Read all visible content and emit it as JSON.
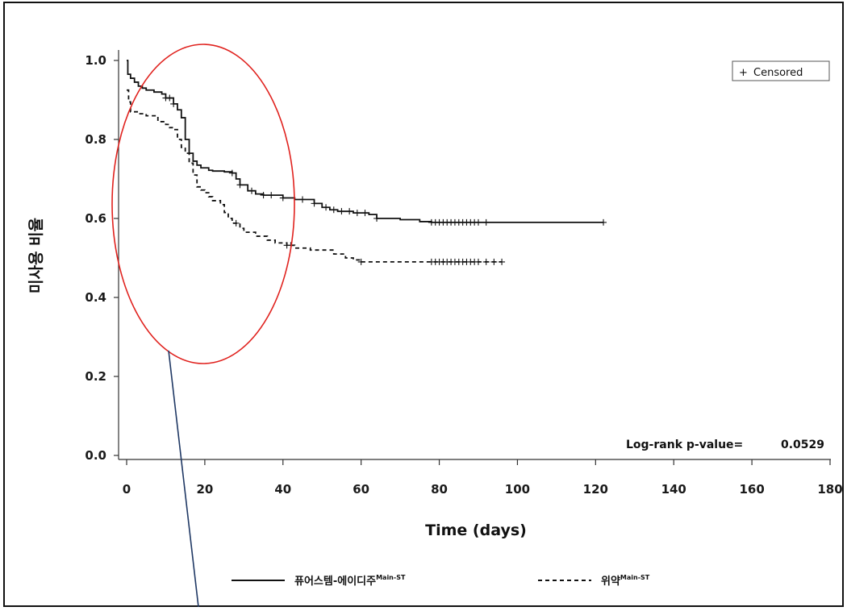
{
  "chart_data": {
    "type": "line",
    "subtype": "kaplan-meier",
    "title": "",
    "xlabel": "Time (days)",
    "ylabel": "미사용 비율",
    "xlim": [
      0,
      180
    ],
    "ylim": [
      0,
      1.0
    ],
    "x_ticks": [
      0,
      20,
      40,
      60,
      80,
      100,
      120,
      140,
      160,
      180
    ],
    "x_tick_labels": [
      "0",
      "20",
      "40",
      "60",
      "80",
      "100",
      "120",
      "140",
      "160",
      "180"
    ],
    "y_ticks": [
      0.0,
      0.2,
      0.4,
      0.6,
      0.8,
      1.0
    ],
    "y_tick_labels": [
      "0.0",
      "0.2",
      "0.4",
      "0.6",
      "0.8",
      "1.0"
    ],
    "grid": false,
    "censor_legend": {
      "symbol": "+",
      "label": "Censored",
      "placement": "top-right"
    },
    "annotation": {
      "label": "Log-rank p-value=",
      "value": "0.0529",
      "placement": "bottom-right"
    },
    "series": [
      {
        "name": "퓨어스템-에이디주",
        "name_sup": "Main-ST",
        "line_style": "solid",
        "color": "#111111",
        "x": [
          0,
          0.3,
          1,
          2,
          3,
          4,
          5,
          7,
          9,
          10,
          12,
          13,
          14,
          15,
          16,
          17,
          18,
          19,
          21,
          22,
          23,
          25,
          27,
          28,
          29,
          31,
          33,
          35,
          40,
          43,
          48,
          50,
          52,
          54,
          58,
          62,
          64,
          70,
          75,
          78,
          122
        ],
        "y": [
          1.0,
          0.965,
          0.955,
          0.945,
          0.935,
          0.93,
          0.925,
          0.92,
          0.915,
          0.905,
          0.89,
          0.875,
          0.855,
          0.8,
          0.765,
          0.745,
          0.735,
          0.728,
          0.722,
          0.72,
          0.72,
          0.718,
          0.715,
          0.7,
          0.685,
          0.67,
          0.662,
          0.659,
          0.652,
          0.648,
          0.638,
          0.628,
          0.622,
          0.618,
          0.614,
          0.61,
          0.6,
          0.597,
          0.592,
          0.59,
          0.59
        ],
        "censored_x": [
          10,
          11,
          12,
          27,
          29,
          32,
          35,
          37,
          40,
          45,
          48,
          51,
          53,
          55,
          57,
          59,
          61,
          64,
          78,
          79,
          80,
          81,
          82,
          83,
          84,
          85,
          86,
          87,
          88,
          89,
          90,
          92,
          122
        ]
      },
      {
        "name": "위약",
        "name_sup": "Main-ST",
        "line_style": "dashed",
        "color": "#111111",
        "x": [
          0,
          0.5,
          1,
          3,
          5,
          8,
          10,
          11,
          12,
          13,
          14,
          15,
          16,
          17,
          18,
          19,
          20,
          21,
          22,
          24,
          25,
          26,
          27,
          29,
          30,
          33,
          36,
          38,
          41,
          43,
          47,
          53,
          56,
          58,
          60,
          96
        ],
        "y": [
          0.925,
          0.895,
          0.87,
          0.865,
          0.86,
          0.845,
          0.838,
          0.83,
          0.825,
          0.8,
          0.78,
          0.765,
          0.74,
          0.71,
          0.68,
          0.672,
          0.665,
          0.655,
          0.645,
          0.635,
          0.615,
          0.6,
          0.588,
          0.575,
          0.565,
          0.555,
          0.545,
          0.538,
          0.532,
          0.525,
          0.52,
          0.51,
          0.5,
          0.495,
          0.49,
          0.49
        ],
        "censored_x": [
          28,
          41,
          42,
          60,
          78,
          79,
          80,
          81,
          82,
          83,
          84,
          85,
          86,
          87,
          88,
          89,
          90,
          92,
          94,
          96
        ]
      }
    ]
  }
}
